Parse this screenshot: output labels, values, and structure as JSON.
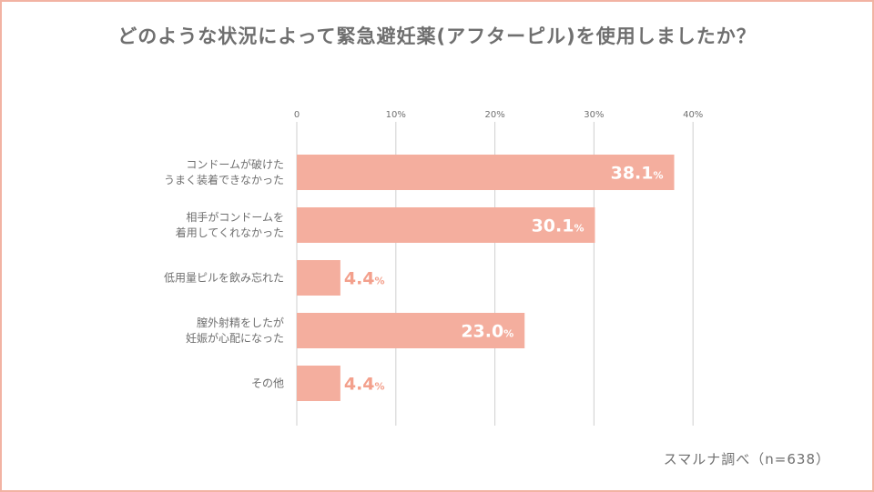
{
  "page": {
    "title": "どのような状況によって緊急避妊薬(アフターピル)を使用しましたか？",
    "source": "スマルナ調べ（n=638）"
  },
  "colors": {
    "bar": "#f4ae9e",
    "value_label": "#f3a08c",
    "value_label_on_bar": "#ffffff",
    "grid": "#cfcfcf",
    "text": "#6f6f6f",
    "frame": "#f2b3a3"
  },
  "chart_data": {
    "type": "bar",
    "orientation": "horizontal",
    "categories": [
      [
        "コンドームが破けた",
        "うまく装着できなかった"
      ],
      [
        "相手がコンドームを",
        "着用してくれなかった"
      ],
      [
        "低用量ピルを飲み忘れた"
      ],
      [
        "膣外射精をしたが",
        "妊娠が心配になった"
      ],
      [
        "その他"
      ]
    ],
    "values": [
      38.1,
      30.1,
      4.4,
      23.0,
      4.4
    ],
    "value_labels": [
      "38.1",
      "30.1",
      "4.4",
      "23.0",
      "4.4"
    ],
    "value_suffix": "%",
    "ticks": [
      0,
      10,
      20,
      30,
      40
    ],
    "tick_labels": [
      "0",
      "10%",
      "20%",
      "30%",
      "40%"
    ],
    "xlim": [
      0,
      40
    ],
    "axis_position": "top",
    "grid": true,
    "legend": false
  }
}
